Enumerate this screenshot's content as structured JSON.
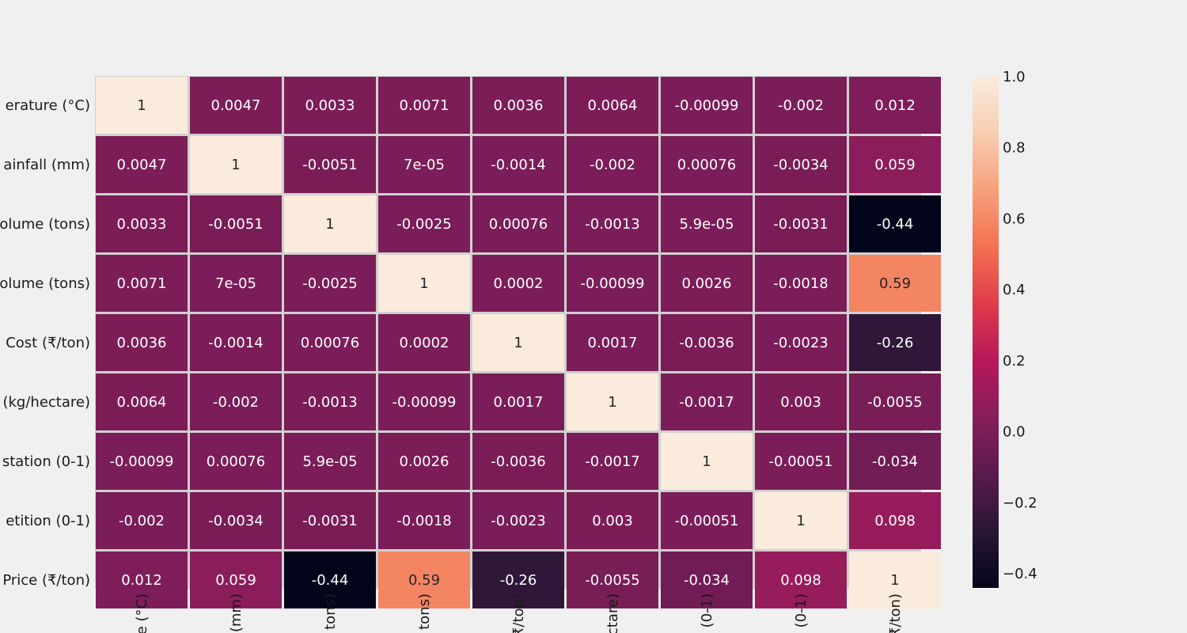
{
  "chart_data": {
    "type": "heatmap",
    "title": "",
    "xlabel": "",
    "ylabel": "",
    "row_labels": [
      "erature (°C)",
      "ainfall (mm)",
      "olume (tons)",
      "olume (tons)",
      "Cost (₹/ton)",
      "(kg/hectare)",
      "station (0-1)",
      "etition (0-1)",
      "Price (₹/ton)"
    ],
    "column_labels": [
      "e (°C)",
      "(mm)",
      "tons)",
      "tons)",
      "₹/ton)",
      "ctare)",
      "(0-1)",
      "(0-1)",
      "₹/ton)"
    ],
    "values": [
      [
        1,
        0.0047,
        0.0033,
        0.0071,
        0.0036,
        0.0064,
        -0.00099,
        -0.002,
        0.012
      ],
      [
        0.0047,
        1,
        -0.0051,
        7e-05,
        -0.0014,
        -0.002,
        0.00076,
        -0.0034,
        0.059
      ],
      [
        0.0033,
        -0.0051,
        1,
        -0.0025,
        0.00076,
        -0.0013,
        5.9e-05,
        -0.0031,
        -0.44
      ],
      [
        0.0071,
        7e-05,
        -0.0025,
        1,
        0.0002,
        -0.00099,
        0.0026,
        -0.0018,
        0.59
      ],
      [
        0.0036,
        -0.0014,
        0.00076,
        0.0002,
        1,
        0.0017,
        -0.0036,
        -0.0023,
        -0.26
      ],
      [
        0.0064,
        -0.002,
        -0.0013,
        -0.00099,
        0.0017,
        1,
        -0.0017,
        0.003,
        -0.0055
      ],
      [
        -0.00099,
        0.00076,
        5.9e-05,
        0.0026,
        -0.0036,
        -0.0017,
        1,
        -0.00051,
        -0.034
      ],
      [
        -0.002,
        -0.0034,
        -0.0031,
        -0.0018,
        -0.0023,
        0.003,
        -0.00051,
        1,
        0.098
      ],
      [
        0.012,
        0.059,
        -0.44,
        0.59,
        -0.26,
        -0.0055,
        -0.034,
        0.098,
        1
      ]
    ],
    "annotations": [
      [
        "1",
        "0.0047",
        "0.0033",
        "0.0071",
        "0.0036",
        "0.0064",
        "-0.00099",
        "-0.002",
        "0.012"
      ],
      [
        "0.0047",
        "1",
        "-0.0051",
        "7e-05",
        "-0.0014",
        "-0.002",
        "0.00076",
        "-0.0034",
        "0.059"
      ],
      [
        "0.0033",
        "-0.0051",
        "1",
        "-0.0025",
        "0.00076",
        "-0.0013",
        "5.9e-05",
        "-0.0031",
        "-0.44"
      ],
      [
        "0.0071",
        "7e-05",
        "-0.0025",
        "1",
        "0.0002",
        "-0.00099",
        "0.0026",
        "-0.0018",
        "0.59"
      ],
      [
        "0.0036",
        "-0.0014",
        "0.00076",
        "0.0002",
        "1",
        "0.0017",
        "-0.0036",
        "-0.0023",
        "-0.26"
      ],
      [
        "0.0064",
        "-0.002",
        "-0.0013",
        "-0.00099",
        "0.0017",
        "1",
        "-0.0017",
        "0.003",
        "-0.0055"
      ],
      [
        "-0.00099",
        "0.00076",
        "5.9e-05",
        "0.0026",
        "-0.0036",
        "-0.0017",
        "1",
        "-0.00051",
        "-0.034"
      ],
      [
        "-0.002",
        "-0.0034",
        "-0.0031",
        "-0.0018",
        "-0.0023",
        "0.003",
        "-0.00051",
        "1",
        "0.098"
      ],
      [
        "0.012",
        "0.059",
        "-0.44",
        "0.59",
        "-0.26",
        "-0.0055",
        "-0.034",
        "0.098",
        "1"
      ]
    ],
    "colorbar": {
      "vmin": -0.44,
      "vmax": 1,
      "ticks": [
        1.0,
        0.8,
        0.6,
        0.4,
        0.2,
        0.0,
        -0.2,
        -0.4
      ],
      "tick_labels": [
        "1.0",
        "0.8",
        "0.6",
        "0.4",
        "0.2",
        "0.0",
        "−0.2",
        "−0.4"
      ],
      "colormap": "rocket",
      "color_stops": [
        "#03051a",
        "#2a1636",
        "#5a1a4e",
        "#861e5b",
        "#b6185a",
        "#e03b4a",
        "#f37051",
        "#f6a07b",
        "#f8cdb0",
        "#faebdd"
      ]
    },
    "grid": false,
    "cell_border_color": "#d0d0d0",
    "background_color": "#f0f0f0"
  }
}
